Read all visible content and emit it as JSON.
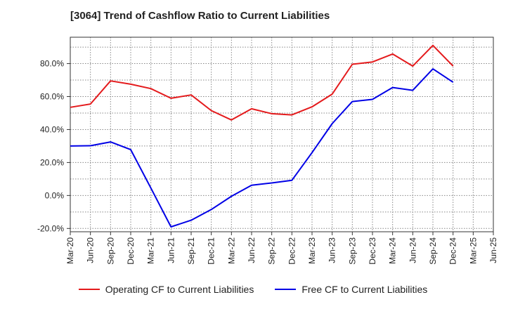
{
  "chart_data": {
    "type": "line",
    "title": "[3064]  Trend of Cashflow Ratio to Current Liabilities",
    "xlabel": "",
    "ylabel": "",
    "ylim": [
      -22,
      96
    ],
    "y_ticks": [
      -20,
      0,
      20,
      40,
      60,
      80
    ],
    "y_tick_labels": [
      "-20.0%",
      "0.0%",
      "20.0%",
      "40.0%",
      "60.0%",
      "80.0%"
    ],
    "categories": [
      "Mar-20",
      "Jun-20",
      "Sep-20",
      "Dec-20",
      "Mar-21",
      "Jun-21",
      "Sep-21",
      "Dec-21",
      "Mar-22",
      "Jun-22",
      "Sep-22",
      "Dec-22",
      "Mar-23",
      "Jun-23",
      "Sep-23",
      "Dec-23",
      "Mar-24",
      "Jun-24",
      "Sep-24",
      "Dec-24",
      "Mar-25",
      "Jun-25"
    ],
    "grid": true,
    "legend_position": "bottom",
    "series": [
      {
        "name": "Operating CF to Current Liabilities",
        "color": "#e41a1c",
        "values": [
          53.5,
          55.5,
          69.5,
          67.5,
          64.8,
          59.0,
          61.0,
          51.5,
          45.8,
          52.6,
          49.6,
          48.9,
          53.8,
          61.5,
          79.6,
          81.0,
          85.8,
          78.5,
          91.0,
          78.5,
          null,
          null
        ]
      },
      {
        "name": "Free CF to Current Liabilities",
        "color": "#0000e6",
        "values": [
          30.0,
          30.2,
          32.5,
          27.8,
          4.5,
          -19.0,
          -15.0,
          -8.5,
          -0.5,
          6.2,
          7.6,
          9.2,
          26.0,
          43.6,
          57.0,
          58.3,
          65.5,
          63.8,
          76.8,
          68.7,
          null,
          null
        ]
      }
    ]
  }
}
